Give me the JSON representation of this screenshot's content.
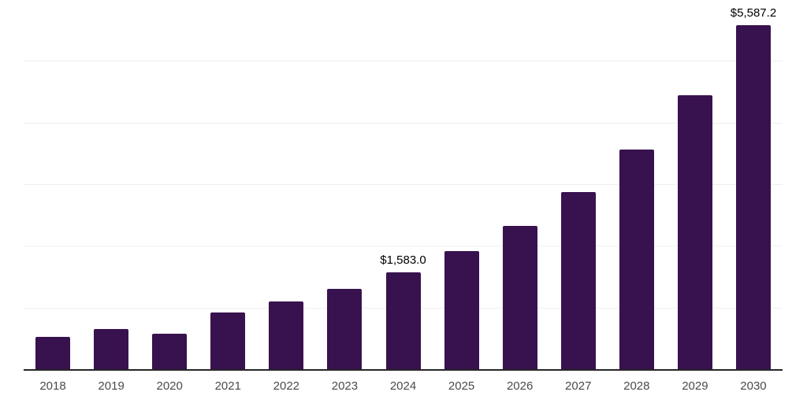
{
  "chart": {
    "background": "#ffffff",
    "bar_color": "#38124E",
    "grid_color": "#efefef",
    "axis_line_color": "#262626",
    "tick_label_color": "#4a4a4a",
    "data_label_color": "#000000"
  },
  "chart_data": {
    "type": "bar",
    "categories": [
      "2018",
      "2019",
      "2020",
      "2021",
      "2022",
      "2023",
      "2024",
      "2025",
      "2026",
      "2027",
      "2028",
      "2029",
      "2030"
    ],
    "values": [
      540,
      660,
      590,
      930,
      1105,
      1320,
      1583.0,
      1925,
      2340,
      2880,
      3570,
      4450,
      5587.2
    ],
    "data_labels": [
      "",
      "",
      "",
      "",
      "",
      "",
      "$1,583.0",
      "",
      "",
      "",
      "",
      "",
      "$5,587.2"
    ],
    "title": "",
    "xlabel": "",
    "ylabel": "",
    "ylim": [
      0,
      6000
    ],
    "grid": true,
    "gridline_values": [
      1000,
      2000,
      3000,
      4000,
      5000,
      6000
    ],
    "legend": false
  }
}
